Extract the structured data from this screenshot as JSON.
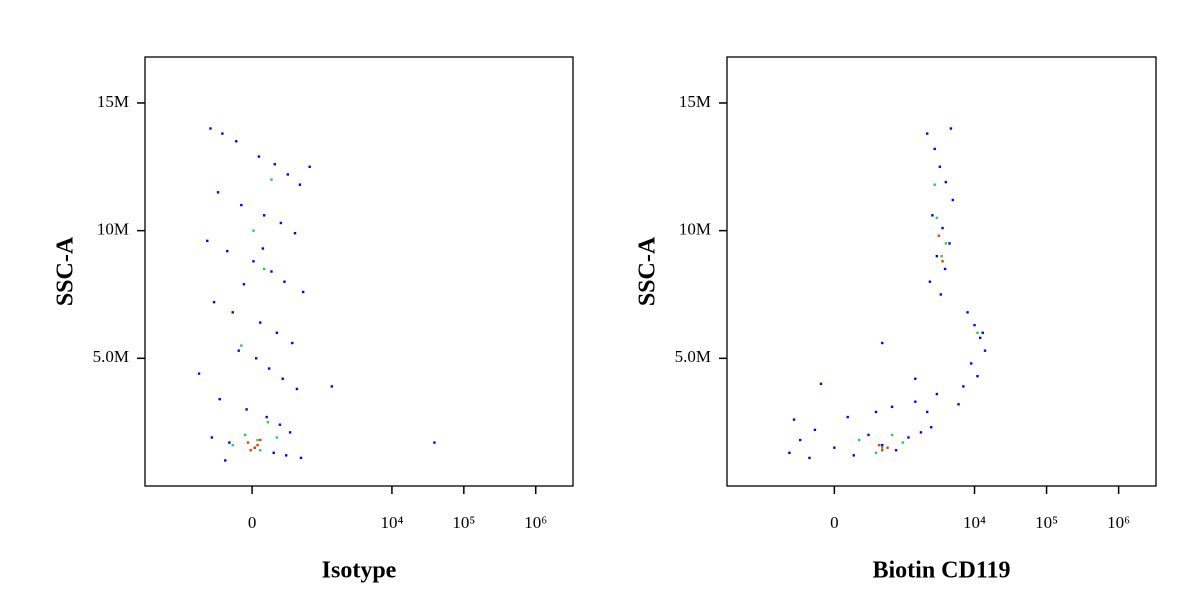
{
  "chart_data": [
    {
      "type": "scatter",
      "xlabel": "Isotype",
      "ylabel": "SSC-A",
      "xscale": "asinh",
      "xlim": [
        -3500,
        3300000
      ],
      "ylim": [
        0,
        16800000
      ],
      "xticks": [
        0,
        {
          "value": 10000,
          "label": "10⁴"
        },
        {
          "value": 100000,
          "label": "10⁵"
        },
        {
          "value": 1000000,
          "label": "10⁶"
        }
      ],
      "yticks": [
        {
          "value": 5000000,
          "label": "5.0M"
        },
        {
          "value": 10000000,
          "label": "10M"
        },
        {
          "value": 15000000,
          "label": "15M"
        }
      ],
      "series": [
        {
          "color": "#0000ff",
          "x": [
            -400,
            -250,
            -120,
            50,
            180,
            320,
            500,
            -300,
            -80,
            90,
            240,
            420,
            -450,
            -200,
            10,
            150,
            280,
            560,
            -350,
            -150,
            60,
            200,
            380,
            -100,
            30,
            130,
            260,
            450,
            -280,
            -40,
            110,
            230,
            350,
            -380,
            -180,
            20,
            170,
            300,
            520,
            -220,
            1450,
            -600,
            700,
            -60,
            80,
            39000
          ],
          "values": [
            14000000,
            13800000,
            13500000,
            12900000,
            12600000,
            12200000,
            11800000,
            11500000,
            11000000,
            10600000,
            10300000,
            9900000,
            9600000,
            9200000,
            8800000,
            8400000,
            8000000,
            7600000,
            7200000,
            6800000,
            6400000,
            6000000,
            5600000,
            5300000,
            5000000,
            4600000,
            4200000,
            3800000,
            3400000,
            3000000,
            2700000,
            2400000,
            2100000,
            1900000,
            1700000,
            1500000,
            1300000,
            1200000,
            1100000,
            1000000,
            3900000,
            4400000,
            12500000,
            7900000,
            9300000,
            1700000
          ]
        },
        {
          "color": "#22cc55",
          "x": [
            -50,
            40,
            120,
            -150,
            60,
            200,
            -80,
            10,
            90,
            150
          ],
          "values": [
            2000000,
            1800000,
            2500000,
            1600000,
            1400000,
            1900000,
            5500000,
            10000000,
            8500000,
            12000000
          ]
        },
        {
          "color": "#ff3300",
          "x": [
            -30,
            20,
            60,
            -10,
            40
          ],
          "values": [
            1700000,
            1500000,
            1800000,
            1400000,
            1600000
          ]
        }
      ]
    },
    {
      "type": "scatter",
      "xlabel": "Biotin CD119",
      "ylabel": "SSC-A",
      "xscale": "asinh",
      "xlim": [
        -3500,
        3300000
      ],
      "ylim": [
        0,
        16800000
      ],
      "xticks": [
        0,
        {
          "value": 10000,
          "label": "10⁴"
        },
        {
          "value": 100000,
          "label": "10⁵"
        },
        {
          "value": 1000000,
          "label": "10⁶"
        }
      ],
      "yticks": [
        {
          "value": 5000000,
          "label": "5.0M"
        },
        {
          "value": 10000000,
          "label": "10M"
        },
        {
          "value": 15000000,
          "label": "15M"
        }
      ],
      "series": [
        {
          "color": "#0000ff",
          "x": [
            -450,
            -300,
            -150,
            0,
            150,
            300,
            500,
            800,
            1200,
            1800,
            2500,
            -380,
            -200,
            100,
            400,
            700,
            1500,
            2200,
            2200,
            2800,
            3300,
            4000,
            5000,
            2600,
            3600,
            4500,
            3000,
            3900,
            2400,
            3400,
            4700,
            8000,
            10000,
            12000,
            14000,
            9000,
            11000,
            13000,
            7000,
            1500,
            3000,
            500,
            -100,
            6000
          ],
          "values": [
            1300000,
            1800000,
            2200000,
            1500000,
            1200000,
            2000000,
            1600000,
            1400000,
            1900000,
            2100000,
            2300000,
            2600000,
            1100000,
            2700000,
            2900000,
            3100000,
            3300000,
            2900000,
            13800000,
            13200000,
            12500000,
            11900000,
            11200000,
            10600000,
            10100000,
            9500000,
            9000000,
            8500000,
            8000000,
            7500000,
            14000000,
            6800000,
            6300000,
            5800000,
            5300000,
            4800000,
            4300000,
            6000000,
            3900000,
            4200000,
            3600000,
            5600000,
            4000000,
            3200000
          ]
        },
        {
          "color": "#22cc55",
          "x": [
            200,
            500,
            700,
            1000,
            3000,
            3500,
            2800,
            4000,
            11000,
            400
          ],
          "values": [
            1800000,
            1500000,
            2000000,
            1700000,
            10500000,
            9000000,
            11800000,
            9500000,
            6000000,
            1300000
          ]
        },
        {
          "color": "#ff3300",
          "x": [
            450,
            600,
            3200,
            3600,
            500
          ],
          "values": [
            1600000,
            1500000,
            9800000,
            8800000,
            1400000
          ]
        }
      ]
    }
  ]
}
